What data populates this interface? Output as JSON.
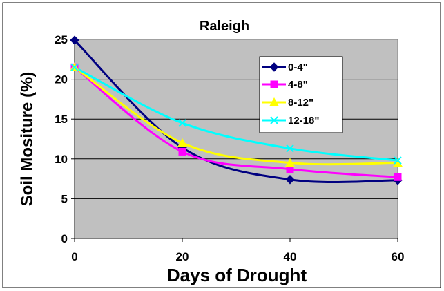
{
  "chart_data": {
    "type": "line",
    "title": "Raleigh",
    "xlabel": "Days of Drought",
    "ylabel": "Soil Mositure (%)",
    "x": [
      0,
      20,
      40,
      60
    ],
    "xlim": [
      0,
      60
    ],
    "ylim": [
      0,
      25
    ],
    "xticks": [
      "0",
      "20",
      "40",
      "60"
    ],
    "yticks": [
      "0",
      "5",
      "10",
      "15",
      "20",
      "25"
    ],
    "grid": true,
    "legend_position": "top-right",
    "plot_background": "#c0c0c0",
    "series": [
      {
        "name": "0-4\"",
        "values": [
          24.9,
          11.4,
          7.4,
          7.3
        ],
        "color": "#000080",
        "marker": "diamond"
      },
      {
        "name": "4-8\"",
        "values": [
          21.5,
          10.9,
          8.7,
          7.7
        ],
        "color": "#ff00ff",
        "marker": "square"
      },
      {
        "name": "8-12\"",
        "values": [
          21.5,
          12.0,
          9.5,
          9.5
        ],
        "color": "#ffff00",
        "marker": "triangle"
      },
      {
        "name": "12-18\"",
        "values": [
          21.5,
          14.5,
          11.3,
          9.8
        ],
        "color": "#00ffff",
        "marker": "x"
      }
    ]
  }
}
